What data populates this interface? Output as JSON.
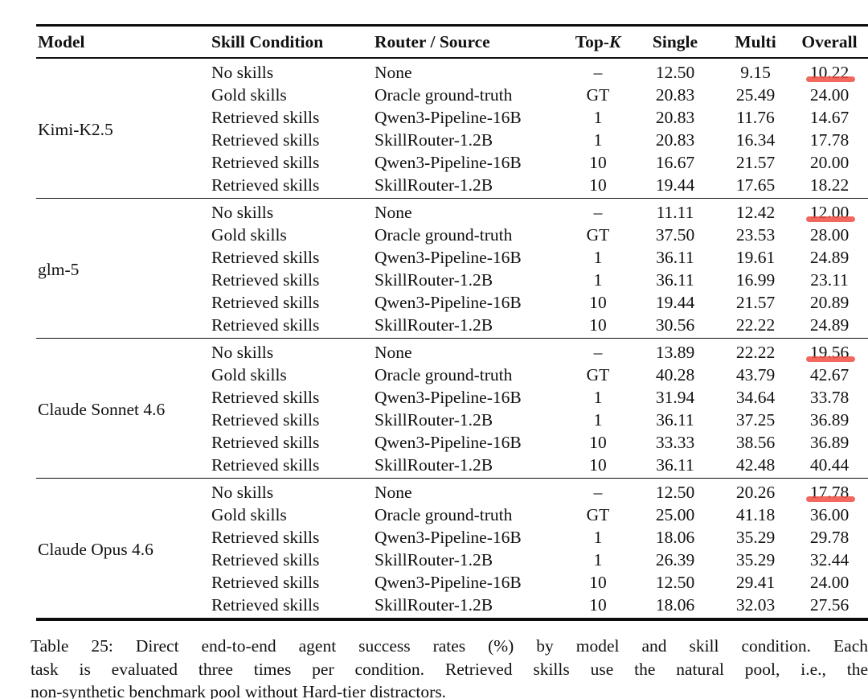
{
  "table": {
    "headers": {
      "model": "Model",
      "skill_condition": "Skill Condition",
      "router_source": "Router / Source",
      "topk_prefix": "Top-",
      "topk_k": "K",
      "single": "Single",
      "multi": "Multi",
      "overall": "Overall"
    },
    "highlight_color": "rgba(240, 77, 66, 0.85)",
    "groups": [
      {
        "model": "Kimi-K2.5",
        "rows": [
          {
            "skill": "No skills",
            "router": "None",
            "topk": "–",
            "single": "12.50",
            "multi": "9.15",
            "overall": "10.22",
            "highlight": true
          },
          {
            "skill": "Gold skills",
            "router": "Oracle ground-truth",
            "topk": "GT",
            "single": "20.83",
            "multi": "25.49",
            "overall": "24.00",
            "highlight": false
          },
          {
            "skill": "Retrieved skills",
            "router": "Qwen3-Pipeline-16B",
            "topk": "1",
            "single": "20.83",
            "multi": "11.76",
            "overall": "14.67",
            "highlight": false
          },
          {
            "skill": "Retrieved skills",
            "router": "SkillRouter-1.2B",
            "topk": "1",
            "single": "20.83",
            "multi": "16.34",
            "overall": "17.78",
            "highlight": false
          },
          {
            "skill": "Retrieved skills",
            "router": "Qwen3-Pipeline-16B",
            "topk": "10",
            "single": "16.67",
            "multi": "21.57",
            "overall": "20.00",
            "highlight": false
          },
          {
            "skill": "Retrieved skills",
            "router": "SkillRouter-1.2B",
            "topk": "10",
            "single": "19.44",
            "multi": "17.65",
            "overall": "18.22",
            "highlight": false
          }
        ]
      },
      {
        "model": "glm-5",
        "rows": [
          {
            "skill": "No skills",
            "router": "None",
            "topk": "–",
            "single": "11.11",
            "multi": "12.42",
            "overall": "12.00",
            "highlight": true
          },
          {
            "skill": "Gold skills",
            "router": "Oracle ground-truth",
            "topk": "GT",
            "single": "37.50",
            "multi": "23.53",
            "overall": "28.00",
            "highlight": false
          },
          {
            "skill": "Retrieved skills",
            "router": "Qwen3-Pipeline-16B",
            "topk": "1",
            "single": "36.11",
            "multi": "19.61",
            "overall": "24.89",
            "highlight": false
          },
          {
            "skill": "Retrieved skills",
            "router": "SkillRouter-1.2B",
            "topk": "1",
            "single": "36.11",
            "multi": "16.99",
            "overall": "23.11",
            "highlight": false
          },
          {
            "skill": "Retrieved skills",
            "router": "Qwen3-Pipeline-16B",
            "topk": "10",
            "single": "19.44",
            "multi": "21.57",
            "overall": "20.89",
            "highlight": false
          },
          {
            "skill": "Retrieved skills",
            "router": "SkillRouter-1.2B",
            "topk": "10",
            "single": "30.56",
            "multi": "22.22",
            "overall": "24.89",
            "highlight": false
          }
        ]
      },
      {
        "model": "Claude Sonnet 4.6",
        "rows": [
          {
            "skill": "No skills",
            "router": "None",
            "topk": "–",
            "single": "13.89",
            "multi": "22.22",
            "overall": "19.56",
            "highlight": true
          },
          {
            "skill": "Gold skills",
            "router": "Oracle ground-truth",
            "topk": "GT",
            "single": "40.28",
            "multi": "43.79",
            "overall": "42.67",
            "highlight": false
          },
          {
            "skill": "Retrieved skills",
            "router": "Qwen3-Pipeline-16B",
            "topk": "1",
            "single": "31.94",
            "multi": "34.64",
            "overall": "33.78",
            "highlight": false
          },
          {
            "skill": "Retrieved skills",
            "router": "SkillRouter-1.2B",
            "topk": "1",
            "single": "36.11",
            "multi": "37.25",
            "overall": "36.89",
            "highlight": false
          },
          {
            "skill": "Retrieved skills",
            "router": "Qwen3-Pipeline-16B",
            "topk": "10",
            "single": "33.33",
            "multi": "38.56",
            "overall": "36.89",
            "highlight": false
          },
          {
            "skill": "Retrieved skills",
            "router": "SkillRouter-1.2B",
            "topk": "10",
            "single": "36.11",
            "multi": "42.48",
            "overall": "40.44",
            "highlight": false
          }
        ]
      },
      {
        "model": "Claude Opus 4.6",
        "rows": [
          {
            "skill": "No skills",
            "router": "None",
            "topk": "–",
            "single": "12.50",
            "multi": "20.26",
            "overall": "17.78",
            "highlight": true
          },
          {
            "skill": "Gold skills",
            "router": "Oracle ground-truth",
            "topk": "GT",
            "single": "25.00",
            "multi": "41.18",
            "overall": "36.00",
            "highlight": false
          },
          {
            "skill": "Retrieved skills",
            "router": "Qwen3-Pipeline-16B",
            "topk": "1",
            "single": "18.06",
            "multi": "35.29",
            "overall": "29.78",
            "highlight": false
          },
          {
            "skill": "Retrieved skills",
            "router": "SkillRouter-1.2B",
            "topk": "1",
            "single": "26.39",
            "multi": "35.29",
            "overall": "32.44",
            "highlight": false
          },
          {
            "skill": "Retrieved skills",
            "router": "Qwen3-Pipeline-16B",
            "topk": "10",
            "single": "12.50",
            "multi": "29.41",
            "overall": "24.00",
            "highlight": false
          },
          {
            "skill": "Retrieved skills",
            "router": "SkillRouter-1.2B",
            "topk": "10",
            "single": "18.06",
            "multi": "32.03",
            "overall": "27.56",
            "highlight": false
          }
        ]
      }
    ]
  },
  "caption": {
    "lines": [
      "Table 25: Direct end-to-end agent success rates (%) by model and skill condition. Each",
      "task is evaluated three times per condition. Retrieved skills use the natural pool, i.e., the",
      "non-synthetic benchmark pool without Hard-tier distractors."
    ]
  }
}
